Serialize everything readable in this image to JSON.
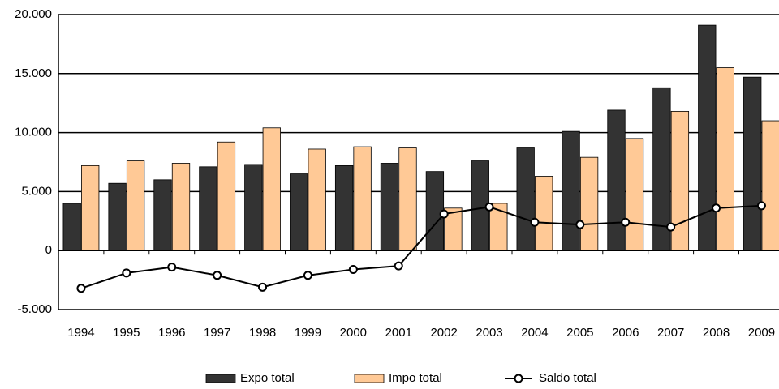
{
  "chart_data": {
    "type": "bar",
    "categories": [
      "1994",
      "1995",
      "1996",
      "1997",
      "1998",
      "1999",
      "2000",
      "2001",
      "2002",
      "2003",
      "2004",
      "2005",
      "2006",
      "2007",
      "2008",
      "2009"
    ],
    "series": [
      {
        "name": "Expo total",
        "color": "#333333",
        "values": [
          4000,
          5700,
          6000,
          7100,
          7300,
          6500,
          7200,
          7400,
          6700,
          7600,
          8700,
          10100,
          11900,
          13800,
          19100,
          14700
        ]
      },
      {
        "name": "Impo total",
        "color": "#ffc996",
        "values": [
          7200,
          7600,
          7400,
          9200,
          10400,
          8600,
          8800,
          8700,
          3600,
          4000,
          6300,
          7900,
          9500,
          11800,
          15500,
          11000
        ]
      },
      {
        "name": "Saldo total",
        "type": "line",
        "color": "#000000",
        "values": [
          -3200,
          -1900,
          -1400,
          -2100,
          -3100,
          -2100,
          -1600,
          -1300,
          3100,
          3700,
          2400,
          2200,
          2400,
          2000,
          3600,
          3800
        ]
      }
    ],
    "ylim": [
      -5000,
      20000
    ],
    "yticks": [
      {
        "value": -5000,
        "label": "-5.000"
      },
      0,
      {
        "value": 5000,
        "label": "5.000"
      },
      {
        "value": 10000,
        "label": "10.000"
      },
      {
        "value": 15000,
        "label": "15.000"
      },
      {
        "value": 20000,
        "label": "20.000"
      }
    ],
    "grid": true,
    "legend": "bottom"
  }
}
